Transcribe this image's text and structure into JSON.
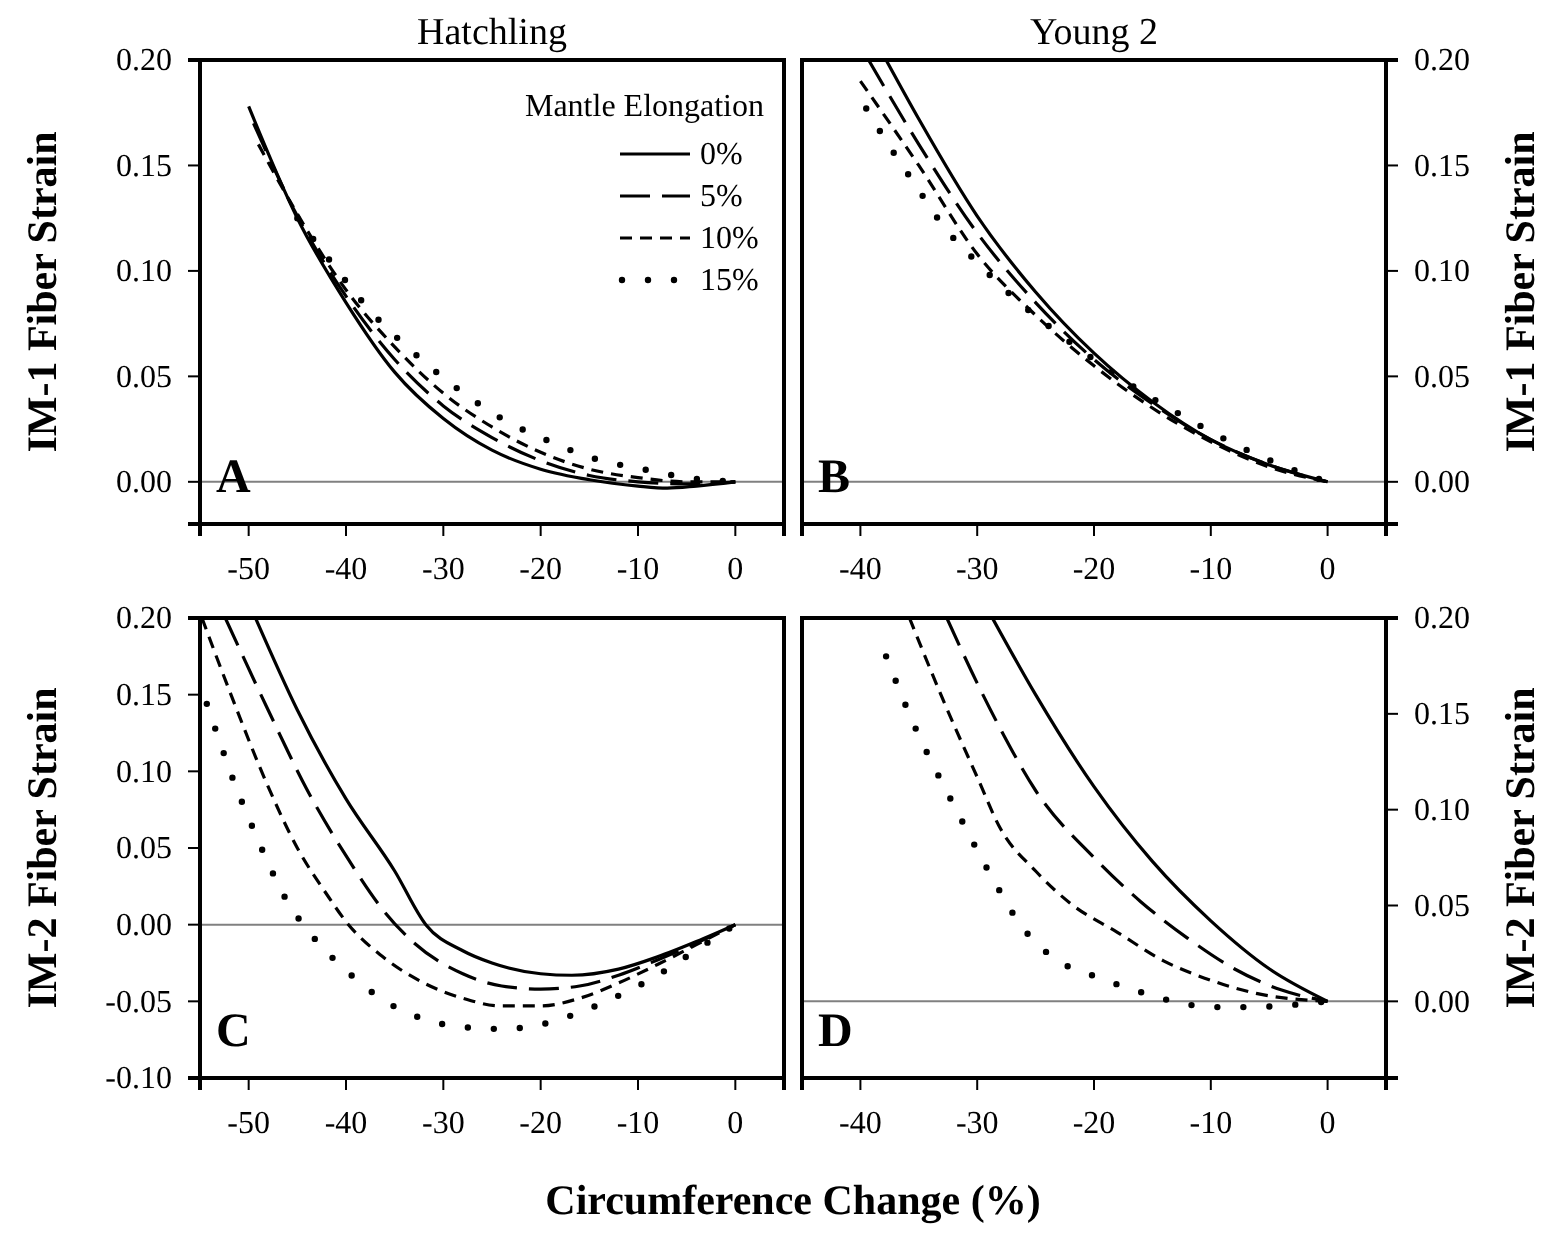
{
  "chart_data": [
    {
      "type": "line",
      "title": "Hatchling",
      "ylabel": "IM-1 Fiber Strain",
      "legend_title": "Mantle Elongation",
      "legend": "top right",
      "annotations": [
        "A"
      ],
      "xlim": [
        -55,
        5
      ],
      "xticks": [
        -50,
        -40,
        -30,
        -20,
        -10,
        0
      ],
      "ylim": [
        -0.02,
        0.2
      ],
      "yticks": [
        {
          "value": 0,
          "label": "0.00"
        },
        {
          "value": 0.05,
          "label": "0.05"
        },
        {
          "value": 0.1,
          "label": "0.10"
        },
        {
          "value": 0.15,
          "label": "0.15"
        },
        {
          "value": 0.2,
          "label": "0.20"
        }
      ],
      "ref_lines": [
        {
          "axis": "y",
          "value": 0,
          "color": "#808080"
        }
      ],
      "series": [
        {
          "name": "0%",
          "color": "#000000",
          "line_style": "solid",
          "x": [
            -50,
            -45,
            -40,
            -35,
            -30,
            -25,
            -20,
            -15,
            -10,
            -7,
            -4,
            0
          ],
          "values": [
            0.178,
            0.125,
            0.085,
            0.052,
            0.03,
            0.015,
            0.006,
            0.001,
            -0.002,
            -0.003,
            -0.002,
            0
          ]
        },
        {
          "name": "5%",
          "color": "#000000",
          "line_style": "longdash",
          "x": [
            -49.5,
            -45,
            -40,
            -35,
            -30,
            -25,
            -20,
            -15,
            -10,
            -5,
            0
          ],
          "values": [
            0.17,
            0.126,
            0.088,
            0.058,
            0.036,
            0.021,
            0.01,
            0.003,
            0,
            -0.001,
            0
          ]
        },
        {
          "name": "10%",
          "color": "#000000",
          "line_style": "dashed",
          "x": [
            -49,
            -45,
            -40,
            -35,
            -30,
            -25,
            -20,
            -15,
            -10,
            -5,
            0
          ],
          "values": [
            0.16,
            0.127,
            0.091,
            0.064,
            0.042,
            0.026,
            0.014,
            0.006,
            0.002,
            0,
            0
          ]
        },
        {
          "name": "15%",
          "color": "#000000",
          "line_style": "dotted",
          "x": [
            -45,
            -41.5,
            -37.5,
            -33,
            -28.5,
            -24,
            -19,
            -14.5,
            -9.5,
            -5,
            0
          ],
          "values": [
            0.125,
            0.104,
            0.081,
            0.061,
            0.044,
            0.03,
            0.019,
            0.011,
            0.006,
            0.002,
            0
          ]
        }
      ]
    },
    {
      "type": "line",
      "title": "Young 2",
      "y2label": "IM-1 Fiber Strain",
      "annotations": [
        "B"
      ],
      "xlim": [
        -45,
        5
      ],
      "xticks": [
        -40,
        -30,
        -20,
        -10,
        0
      ],
      "y2lim": [
        -0.02,
        0.2
      ],
      "y2ticks": [
        {
          "value": 0,
          "label": "0.00"
        },
        {
          "value": 0.05,
          "label": "0.05"
        },
        {
          "value": 0.1,
          "label": "0.10"
        },
        {
          "value": 0.15,
          "label": "0.15"
        },
        {
          "value": 0.2,
          "label": "0.20"
        }
      ],
      "ref_lines": [
        {
          "axis": "y2",
          "value": 0,
          "color": "#808080"
        }
      ],
      "series": [
        {
          "color": "#000000",
          "line_style": "solid",
          "axis": "y2",
          "x": [
            -37.8,
            -35,
            -30,
            -25,
            -20,
            -15,
            -10,
            -5,
            0
          ],
          "values": [
            0.2,
            0.172,
            0.126,
            0.09,
            0.061,
            0.038,
            0.02,
            0.008,
            0
          ]
        },
        {
          "color": "#000000",
          "line_style": "longdash",
          "axis": "y2",
          "x": [
            -39.3,
            -35,
            -30,
            -25,
            -20,
            -15,
            -10,
            -5,
            0
          ],
          "values": [
            0.2,
            0.16,
            0.118,
            0.085,
            0.058,
            0.037,
            0.02,
            0.008,
            0
          ]
        },
        {
          "color": "#000000",
          "line_style": "dashed",
          "axis": "y2",
          "x": [
            -40,
            -35,
            -30,
            -25,
            -20,
            -15,
            -10,
            -5,
            0
          ],
          "values": [
            0.19,
            0.15,
            0.108,
            0.079,
            0.055,
            0.035,
            0.019,
            0.007,
            0
          ]
        },
        {
          "color": "#000000",
          "line_style": "dotted",
          "axis": "y2",
          "x": [
            -39.5,
            -37.5,
            -35.2,
            -33,
            -30,
            -26.6,
            -23.2,
            -20,
            -16,
            -12,
            -8,
            -4,
            0
          ],
          "values": [
            0.177,
            0.159,
            0.14,
            0.122,
            0.104,
            0.086,
            0.071,
            0.058,
            0.043,
            0.03,
            0.018,
            0.008,
            0
          ]
        }
      ]
    },
    {
      "type": "line",
      "ylabel": "IM-2 Fiber Strain",
      "xlabel": "Circumference Change (%)",
      "annotations": [
        "C"
      ],
      "xlim": [
        -55,
        5
      ],
      "xticks": [
        -50,
        -40,
        -30,
        -20,
        -10,
        0
      ],
      "ylim": [
        -0.1,
        0.2
      ],
      "yticks": [
        {
          "value": -0.1,
          "label": "-0.10"
        },
        {
          "value": -0.05,
          "label": "-0.05"
        },
        {
          "value": 0,
          "label": "0.00"
        },
        {
          "value": 0.05,
          "label": "0.05"
        },
        {
          "value": 0.1,
          "label": "0.10"
        },
        {
          "value": 0.15,
          "label": "0.15"
        },
        {
          "value": 0.2,
          "label": "0.20"
        }
      ],
      "ref_lines": [
        {
          "axis": "y",
          "value": 0,
          "color": "#808080"
        }
      ],
      "series": [
        {
          "color": "#000000",
          "line_style": "solid",
          "x": [
            -49.3,
            -45,
            -40,
            -35,
            -31.8,
            -28,
            -25,
            -20,
            -16.8,
            -12,
            -8,
            -4,
            0
          ],
          "values": [
            0.2,
            0.14,
            0.082,
            0.035,
            0,
            -0.017,
            -0.025,
            -0.032,
            -0.033,
            -0.029,
            -0.021,
            -0.011,
            0
          ]
        },
        {
          "color": "#000000",
          "line_style": "longdash",
          "x": [
            -52.4,
            -48,
            -44,
            -40,
            -36,
            -33,
            -28,
            -24,
            -20,
            -16,
            -12,
            -8,
            -4,
            0
          ],
          "values": [
            0.2,
            0.14,
            0.088,
            0.045,
            0.008,
            -0.012,
            -0.032,
            -0.04,
            -0.042,
            -0.04,
            -0.033,
            -0.023,
            -0.012,
            0
          ]
        },
        {
          "color": "#000000",
          "line_style": "dashed",
          "x": [
            -54.8,
            -52,
            -48,
            -45,
            -42,
            -40,
            -36,
            -32,
            -28,
            -24,
            -20,
            -16,
            -12,
            -8,
            -4,
            0
          ],
          "values": [
            0.2,
            0.153,
            0.09,
            0.05,
            0.02,
            0.002,
            -0.022,
            -0.038,
            -0.048,
            -0.053,
            -0.053,
            -0.048,
            -0.038,
            -0.026,
            -0.013,
            0
          ]
        },
        {
          "color": "#000000",
          "line_style": "dotted",
          "x": [
            -54.3,
            -52.9,
            -51.5,
            -49.9,
            -48.2,
            -46.2,
            -43.5,
            -39.8,
            -35.7,
            -31.8,
            -27.7,
            -23.8,
            -19.9,
            -15.9,
            -11.9,
            -8,
            -3.9,
            0
          ],
          "values": [
            0.144,
            0.118,
            0.093,
            0.068,
            0.043,
            0.017,
            -0.007,
            -0.031,
            -0.051,
            -0.062,
            -0.067,
            -0.068,
            -0.065,
            -0.057,
            -0.046,
            -0.033,
            -0.016,
            0
          ]
        }
      ]
    },
    {
      "type": "line",
      "y2label": "IM-2 Fiber Strain",
      "annotations": [
        "D"
      ],
      "xlim": [
        -45,
        5
      ],
      "xticks": [
        -40,
        -30,
        -20,
        -10,
        0
      ],
      "y2lim": [
        -0.04,
        0.2
      ],
      "y2ticks": [
        {
          "value": 0,
          "label": "0.00"
        },
        {
          "value": 0.05,
          "label": "0.05"
        },
        {
          "value": 0.1,
          "label": "0.10"
        },
        {
          "value": 0.15,
          "label": "0.15"
        },
        {
          "value": 0.2,
          "label": "0.20"
        }
      ],
      "ref_lines": [
        {
          "axis": "y2",
          "value": 0,
          "color": "#808080"
        }
      ],
      "series": [
        {
          "color": "#000000",
          "line_style": "solid",
          "axis": "y2",
          "x": [
            -28.7,
            -25,
            -20,
            -15,
            -10,
            -5,
            0
          ],
          "values": [
            0.2,
            0.16,
            0.112,
            0.073,
            0.042,
            0.017,
            0
          ]
        },
        {
          "color": "#000000",
          "line_style": "longdash",
          "axis": "y2",
          "x": [
            -32.6,
            -30,
            -28,
            -25,
            -20,
            -16,
            -12,
            -8,
            -4,
            0
          ],
          "values": [
            0.2,
            0.166,
            0.142,
            0.11,
            0.075,
            0.052,
            0.033,
            0.017,
            0.006,
            0
          ]
        },
        {
          "color": "#000000",
          "line_style": "dashed",
          "axis": "y2",
          "x": [
            -35.8,
            -32.9,
            -30,
            -28,
            -25,
            -22,
            -18,
            -14,
            -10,
            -6,
            0
          ],
          "values": [
            0.2,
            0.157,
            0.117,
            0.09,
            0.068,
            0.051,
            0.036,
            0.021,
            0.011,
            0.004,
            0
          ]
        },
        {
          "color": "#000000",
          "line_style": "dotted",
          "axis": "y2",
          "x": [
            -37.8,
            -36.5,
            -35.1,
            -33.5,
            -31.8,
            -30.1,
            -28.3,
            -26.3,
            -23.3,
            -19.9,
            -16.6,
            -13.2,
            -10,
            -6.6,
            -3.3,
            0
          ],
          "values": [
            0.18,
            0.16,
            0.14,
            0.12,
            0.1,
            0.08,
            0.06,
            0.04,
            0.022,
            0.013,
            0.006,
            0,
            -0.003,
            -0.003,
            -0.002,
            0
          ]
        }
      ]
    }
  ]
}
